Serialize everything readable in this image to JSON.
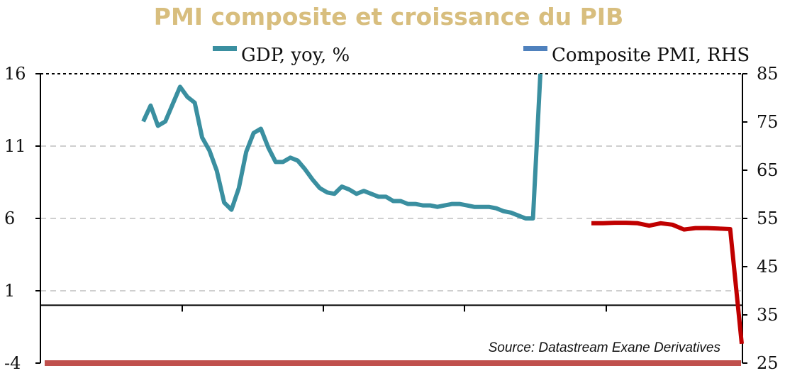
{
  "chart_data": {
    "type": "line",
    "title": "PMI composite et croissance du PIB",
    "title_color": "#D8BE7E",
    "source": "Source: Datastream Exane Derivatives",
    "legend_placement": "top",
    "grid": true,
    "y_left": {
      "ylim": [
        -4,
        16
      ],
      "ticks": [
        "16",
        "11",
        "6",
        "1",
        "-4"
      ]
    },
    "y_right": {
      "ylim": [
        25,
        85
      ],
      "ticks": [
        "85",
        "75",
        "65",
        "55",
        "45",
        "35",
        "25"
      ]
    },
    "series": [
      {
        "name": "GDP, yoy, %",
        "axis": "left",
        "color": "#3A8FA0",
        "legend_color": "#3A8FA0",
        "values": [
          12.7,
          13.8,
          12.4,
          12.7,
          13.9,
          15.1,
          14.4,
          14.0,
          11.6,
          10.7,
          9.3,
          7.1,
          6.6,
          8.1,
          10.6,
          11.9,
          12.2,
          10.9,
          9.9,
          9.9,
          10.2,
          10.0,
          9.4,
          8.7,
          8.1,
          7.8,
          7.7,
          8.2,
          8.0,
          7.7,
          7.9,
          7.7,
          7.5,
          7.5,
          7.2,
          7.2,
          7.0,
          7.0,
          6.9,
          6.9,
          6.8,
          6.9,
          7.0,
          7.0,
          6.9,
          6.8,
          6.8,
          6.8,
          6.7,
          6.5,
          6.4,
          6.2,
          6.0,
          6.0,
          16.0
        ]
      },
      {
        "name": "Composite PMI, RHS",
        "axis": "right",
        "color": "#C00000",
        "legend_color": "#4F81BD",
        "values": [
          54.0,
          54.0,
          54.1,
          54.1,
          54.0,
          53.5,
          54.0,
          53.7,
          52.7,
          53.0,
          53.0,
          52.9,
          52.8,
          29.0
        ]
      }
    ]
  }
}
